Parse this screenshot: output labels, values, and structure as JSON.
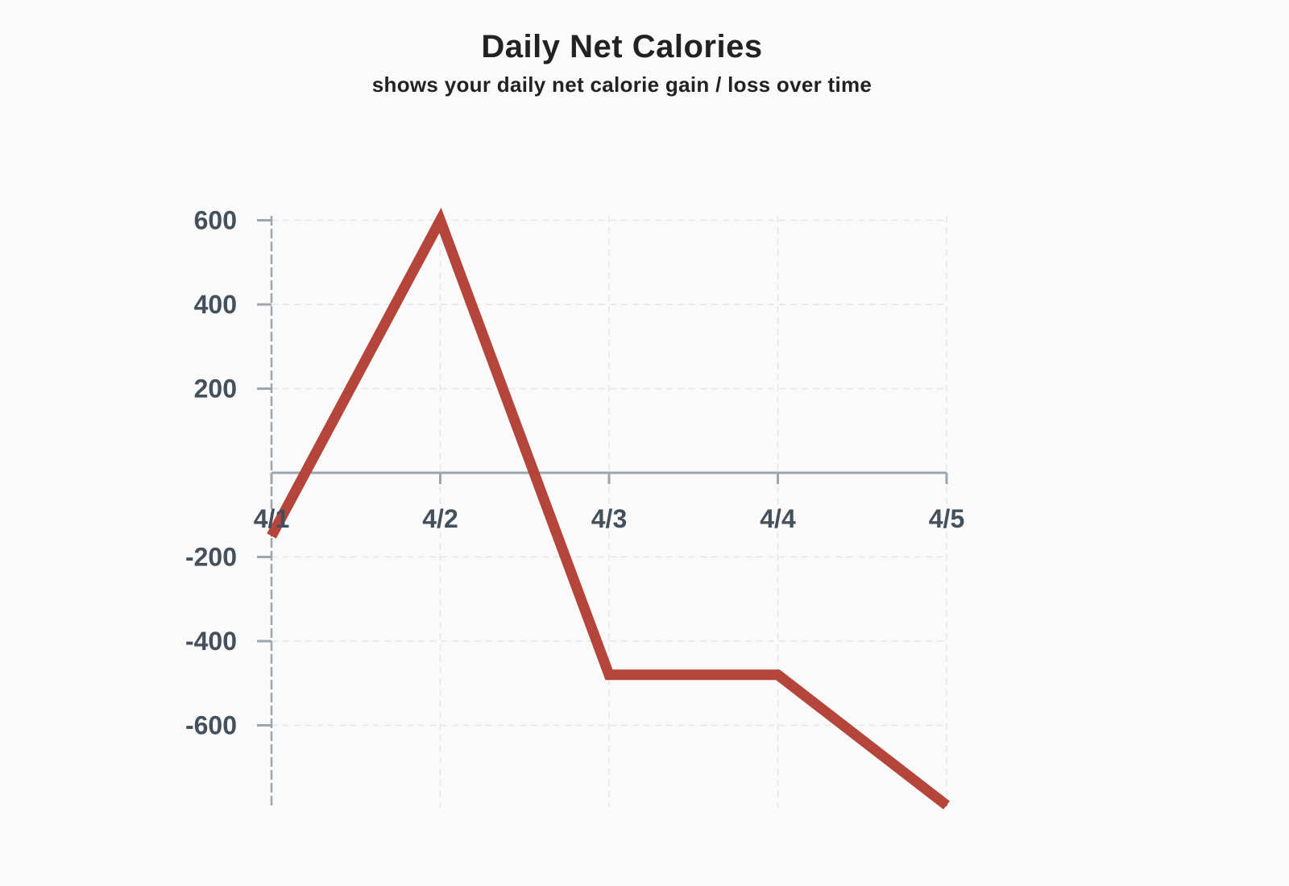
{
  "chart_data": {
    "type": "line",
    "title": "Daily Net Calories",
    "subtitle": "shows your daily net calorie gain / loss over time",
    "xlabel": "",
    "ylabel": "",
    "categories": [
      "4/1",
      "4/2",
      "4/3",
      "4/4",
      "4/5"
    ],
    "series": [
      {
        "values": [
          -150,
          600,
          -480,
          -480,
          -790
        ]
      }
    ],
    "y_ticks": [
      600,
      400,
      200,
      -200,
      -400,
      -600
    ],
    "ylim": [
      -790,
      600
    ],
    "grid": true,
    "legend": "none"
  },
  "colors": {
    "line": "#b5443b",
    "axis": "#9aa7b1",
    "grid": "#e3e6e8",
    "tick_label": "#44505c",
    "title": "#222222"
  }
}
